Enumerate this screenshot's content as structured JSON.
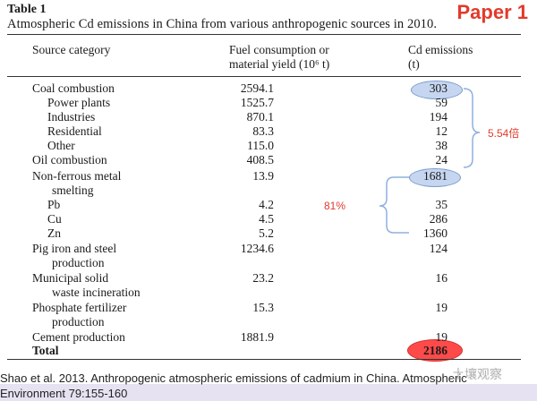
{
  "table_label": "Table 1",
  "paper_tag": "Paper 1",
  "caption": "Atmospheric Cd emissions in China from various anthropogenic sources in 2010.",
  "headers": {
    "category": "Source category",
    "fuel_line1": "Fuel consumption or",
    "fuel_line2": "material yield (10⁶ t)",
    "emis_line1": "Cd emissions",
    "emis_line2": "(t)"
  },
  "rows": [
    {
      "category": "Coal combustion",
      "fuel": "2594.1",
      "emission": "303"
    },
    {
      "category": "Power plants",
      "fuel": "1525.7",
      "emission": "59"
    },
    {
      "category": "Industries",
      "fuel": "870.1",
      "emission": "194"
    },
    {
      "category": "Residential",
      "fuel": "83.3",
      "emission": "12"
    },
    {
      "category": "Other",
      "fuel": "115.0",
      "emission": "38"
    },
    {
      "category": "Oil combustion",
      "fuel": "408.5",
      "emission": "24"
    },
    {
      "category": "Non-ferrous metal",
      "fuel": "13.9",
      "emission": "1681"
    },
    {
      "category": "smelting",
      "fuel": "",
      "emission": ""
    },
    {
      "category": "Pb",
      "fuel": "4.2",
      "emission": "35"
    },
    {
      "category": "Cu",
      "fuel": "4.5",
      "emission": "286"
    },
    {
      "category": "Zn",
      "fuel": "5.2",
      "emission": "1360"
    },
    {
      "category": "Pig iron and steel",
      "fuel": "1234.6",
      "emission": "124"
    },
    {
      "category": "production",
      "fuel": "",
      "emission": ""
    },
    {
      "category": "Municipal solid",
      "fuel": "23.2",
      "emission": "16"
    },
    {
      "category": "waste incineration",
      "fuel": "",
      "emission": ""
    },
    {
      "category": "Phosphate fertilizer",
      "fuel": "15.3",
      "emission": "19"
    },
    {
      "category": "production",
      "fuel": "",
      "emission": ""
    },
    {
      "category": "Cement production",
      "fuel": "1881.9",
      "emission": "19"
    },
    {
      "category": "Total",
      "fuel": "",
      "emission": "2186"
    }
  ],
  "annotations": {
    "ratio": "5.54倍",
    "percent": "81%"
  },
  "citation_line1": "Shao et al. 2013. Anthropogenic atmospheric emissions of cadmium in China. Atmospheric",
  "citation_line2": "Environment 79:155-160",
  "watermark": "土壤观察",
  "colors": {
    "accent_red": "#e23a2b",
    "ellipse_blue": "#8fb0e0",
    "ellipse_red": "#ff4a4a"
  }
}
